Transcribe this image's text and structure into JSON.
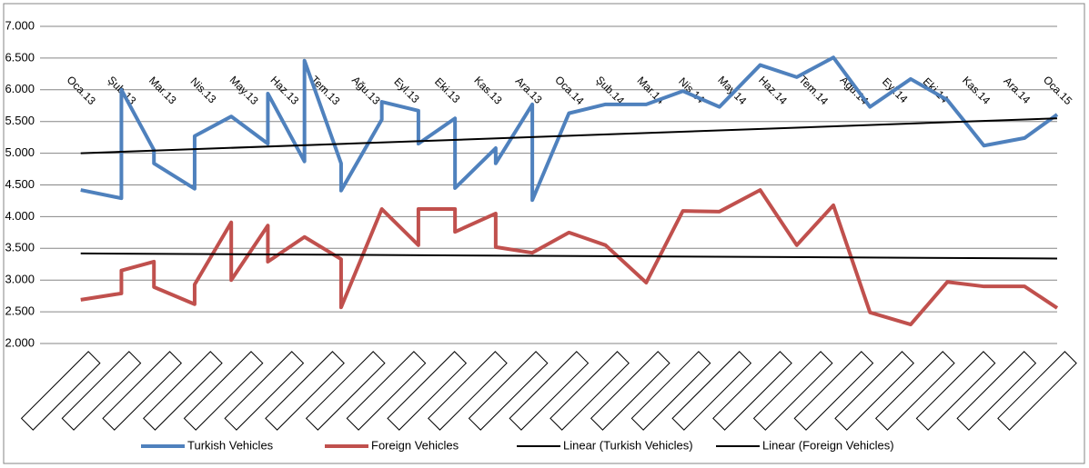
{
  "chart_data": {
    "type": "line",
    "month_labels": [
      "Oca.13",
      "Şub.13",
      "Mar.13",
      "Nis.13",
      "May.13",
      "Haz.13",
      "Tem.13",
      "Ağu.13",
      "Eyl.13",
      "Eki.13",
      "Kas.13",
      "Ara.13",
      "Oca.14",
      "Şub.14",
      "Mar.14",
      "Nis.14",
      "May.14",
      "Haz.14",
      "Tem.14",
      "Ağu.14",
      "Eyl.14",
      "Eki.14",
      "Kas.14",
      "Ara.14",
      "Oca.15"
    ],
    "xlim": [
      -1,
      24
    ],
    "ylim": [
      2000,
      7000
    ],
    "yticks": [
      {
        "value": 2000,
        "label": "2.000"
      },
      {
        "value": 2500,
        "label": "2.500"
      },
      {
        "value": 3000,
        "label": "3.000"
      },
      {
        "value": 3500,
        "label": "3.500"
      },
      {
        "value": 4000,
        "label": "4.000"
      },
      {
        "value": 4500,
        "label": "4.500"
      },
      {
        "value": 5000,
        "label": "5.000"
      },
      {
        "value": 5500,
        "label": "5.500"
      },
      {
        "value": 6000,
        "label": "6.000"
      },
      {
        "value": 6500,
        "label": "6.500"
      },
      {
        "value": 7000,
        "label": "7.000"
      }
    ],
    "grid": true,
    "legend": "bottom",
    "series": [
      {
        "name": "Turkish Vehicles",
        "color": "#4f81bd",
        "width": 4,
        "x": [
          0,
          1,
          1,
          1.8,
          1.8,
          2.8,
          2.8,
          3.7,
          4.6,
          4.6,
          5.5,
          5.5,
          6.4,
          6.4,
          7.4,
          7.4,
          8.3,
          8.3,
          9.2,
          9.2,
          10.2,
          10.2,
          11.1,
          11.1,
          12,
          12.9,
          13.9,
          14.8,
          15.7,
          16.7,
          17.6,
          18.5,
          19.4,
          20.4,
          21.3,
          22.2,
          23.2,
          24
        ],
        "values": [
          4420,
          4290,
          6000,
          5050,
          4840,
          4440,
          5270,
          5580,
          5150,
          5940,
          4870,
          6460,
          4840,
          4410,
          5530,
          5810,
          5670,
          5150,
          5550,
          4450,
          5080,
          4840,
          5770,
          4260,
          5630,
          5770,
          5770,
          5980,
          5730,
          6390,
          6200,
          6510,
          5730,
          6170,
          5840,
          5120,
          5240,
          5610
        ]
      },
      {
        "name": "Foreign Vehicles",
        "color": "#c0504d",
        "width": 4,
        "x": [
          0,
          1,
          1,
          1.8,
          1.8,
          2.8,
          2.8,
          3.7,
          3.7,
          4.6,
          4.6,
          5.5,
          6.4,
          6.4,
          7.4,
          8.3,
          8.3,
          9.2,
          9.2,
          10.2,
          10.2,
          11.1,
          12,
          12.9,
          13.9,
          14.8,
          15.7,
          16.7,
          17.6,
          18.5,
          19.4,
          20.4,
          21.3,
          22.2,
          23.2,
          24
        ],
        "values": [
          2690,
          2790,
          3150,
          3290,
          2890,
          2620,
          2930,
          3910,
          3000,
          3860,
          3290,
          3680,
          3330,
          2570,
          4120,
          3550,
          4120,
          4120,
          3760,
          4050,
          3520,
          3430,
          3750,
          3550,
          2960,
          4090,
          4080,
          4420,
          3550,
          4180,
          2490,
          2300,
          2970,
          2900,
          2900,
          2560
        ]
      },
      {
        "name": "Linear (Turkish Vehicles)",
        "color": "#000000",
        "width": 2,
        "x": [
          0,
          24
        ],
        "values": [
          5000,
          5550
        ]
      },
      {
        "name": "Linear (Foreign Vehicles)",
        "color": "#000000",
        "width": 2,
        "x": [
          0,
          24
        ],
        "values": [
          3420,
          3340
        ]
      }
    ]
  }
}
